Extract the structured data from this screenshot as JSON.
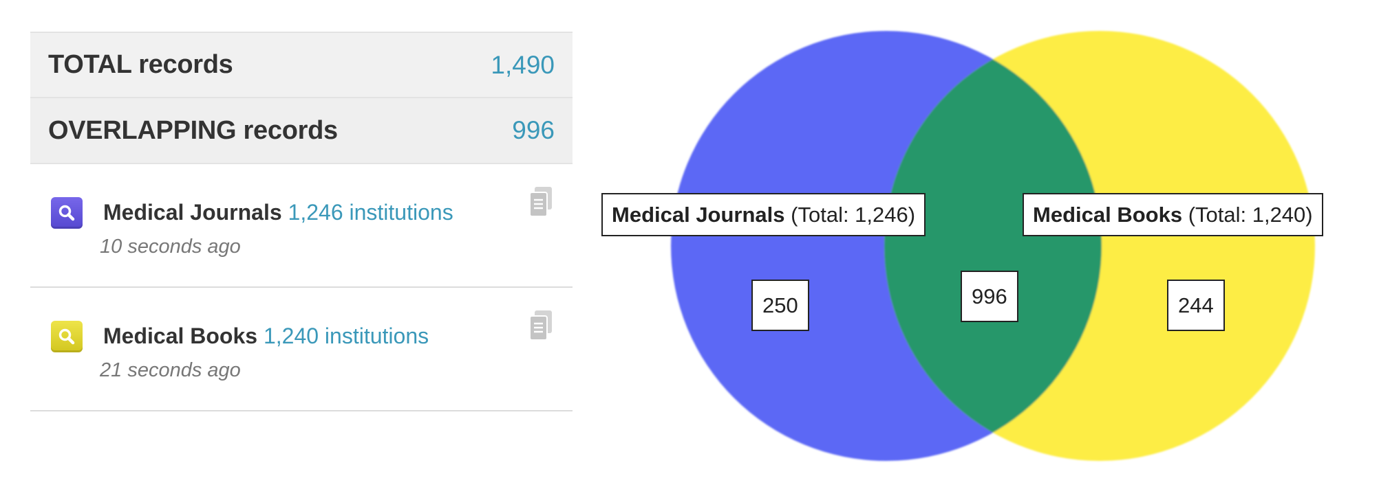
{
  "summary": {
    "total_label": "TOTAL records",
    "total_value": "1,490",
    "overlap_label": "OVERLAPPING records",
    "overlap_value": "996"
  },
  "searches": [
    {
      "name": "Medical Journals",
      "count": "1,246 institutions",
      "time": "10 seconds ago",
      "icon": "search-icon",
      "color": "#5a4cdc"
    },
    {
      "name": "Medical Books",
      "count": "1,240 institutions",
      "time": "21 seconds ago",
      "icon": "search-icon",
      "color": "#e0d433"
    }
  ],
  "venn": {
    "left_name": "Medical Journals",
    "left_total": "(Total: 1,246)",
    "right_name": "Medical Books",
    "right_total": "(Total: 1,240)",
    "left_only": "250",
    "intersection": "996",
    "right_only": "244",
    "colors": {
      "left": "#5b67f5",
      "right": "#fded45",
      "overlap": "#27976a"
    }
  }
}
